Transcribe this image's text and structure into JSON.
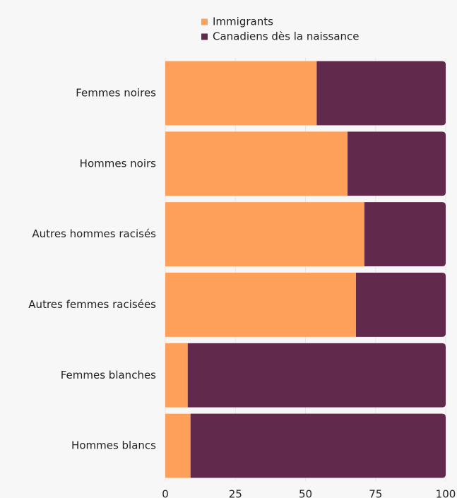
{
  "chart_data": {
    "type": "bar",
    "orientation": "horizontal",
    "stacked": true,
    "categories": [
      "Femmes noires",
      "Hommes noirs",
      "Autres hommes racisés",
      "Autres femmes racisées",
      "Femmes blanches",
      "Hommes blancs"
    ],
    "series": [
      {
        "name": "Immigrants",
        "color": "#ffa05a",
        "values": [
          54,
          65,
          71,
          68,
          8,
          9
        ]
      },
      {
        "name": "Canadiens dès la naissance",
        "color": "#61294b",
        "values": [
          46,
          35,
          29,
          32,
          92,
          91
        ]
      }
    ],
    "xlim": [
      0,
      100
    ],
    "xticks": [
      0,
      25,
      50,
      75,
      100
    ],
    "grid": true
  }
}
